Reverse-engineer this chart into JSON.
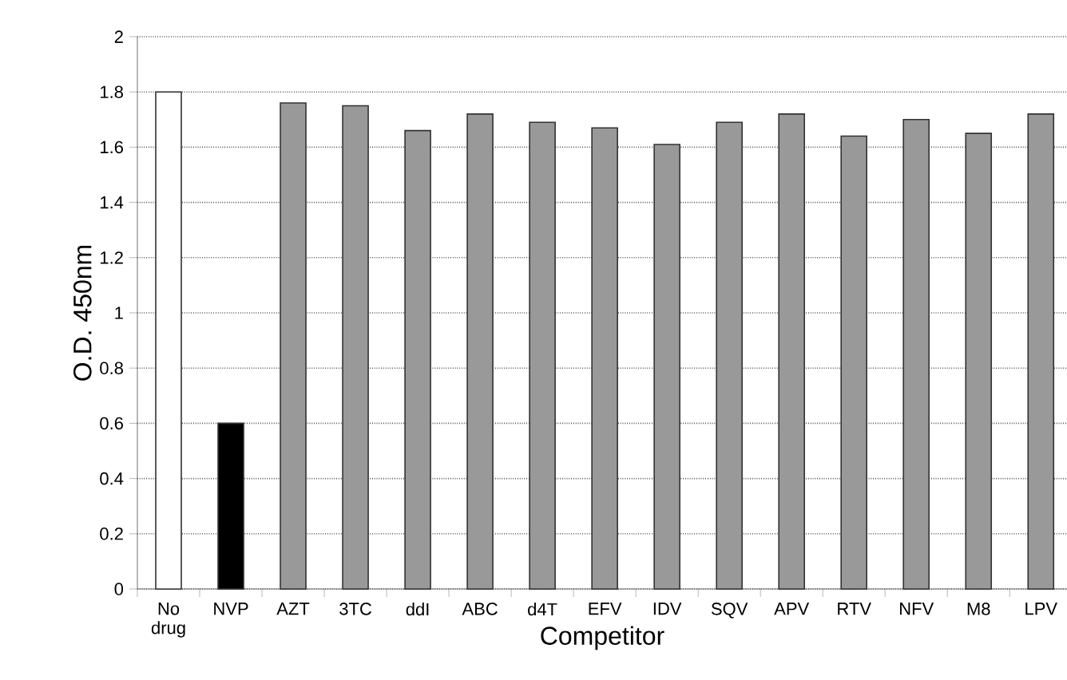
{
  "chart_data": {
    "type": "bar",
    "xlabel": "Competitor",
    "ylabel": "O.D. 450nm",
    "categories": [
      "No drug",
      "NVP",
      "AZT",
      "3TC",
      "ddI",
      "ABC",
      "d4T",
      "EFV",
      "IDV",
      "SQV",
      "APV",
      "RTV",
      "NFV",
      "M8",
      "LPV"
    ],
    "values": [
      1.8,
      0.6,
      1.76,
      1.75,
      1.66,
      1.72,
      1.69,
      1.67,
      1.61,
      1.69,
      1.72,
      1.64,
      1.7,
      1.65,
      1.72
    ],
    "colors": [
      "#ffffff",
      "#000000",
      "#999999",
      "#999999",
      "#999999",
      "#999999",
      "#999999",
      "#999999",
      "#999999",
      "#999999",
      "#999999",
      "#999999",
      "#999999",
      "#999999",
      "#999999"
    ],
    "ylim": [
      0,
      2
    ],
    "yticks": [
      0,
      0.2,
      0.4,
      0.6,
      0.8,
      1,
      1.2,
      1.4,
      1.6,
      1.8,
      2
    ],
    "grid": "y"
  }
}
